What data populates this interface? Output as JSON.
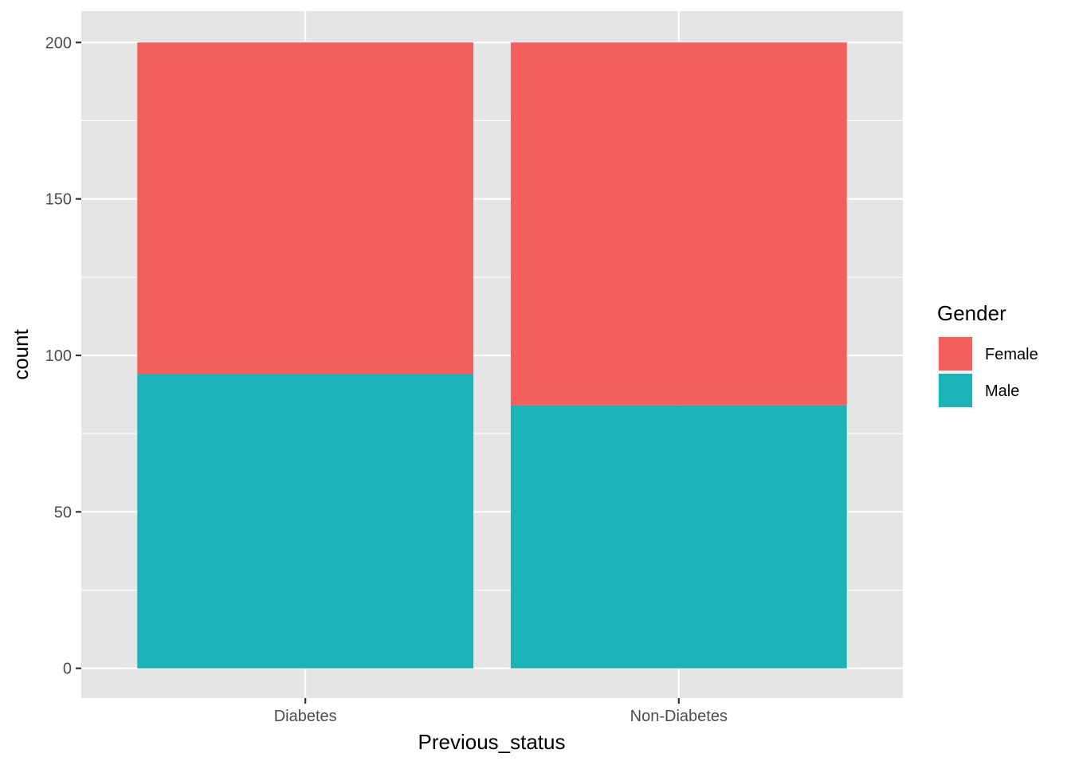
{
  "chart_data": {
    "type": "bar",
    "stacked": true,
    "categories": [
      "Diabetes",
      "Non-Diabetes"
    ],
    "series": [
      {
        "name": "Male",
        "values": [
          94,
          84
        ],
        "color": "#19B3B8"
      },
      {
        "name": "Female",
        "values": [
          106,
          116
        ],
        "color": "#F35F5C"
      }
    ],
    "xlabel": "Previous_status",
    "ylabel": "count",
    "ylim": [
      -9.5,
      210
    ],
    "yticks": [
      0,
      50,
      100,
      150,
      200
    ],
    "grid": true,
    "legend": {
      "title": "Gender",
      "position": "right",
      "items": [
        "Female",
        "Male"
      ]
    },
    "colors": {
      "panel_background": "#E5E5E5",
      "grid": "#FFFFFF",
      "tick_text": "#4D4D4D",
      "tick_mark": "#333333"
    }
  }
}
